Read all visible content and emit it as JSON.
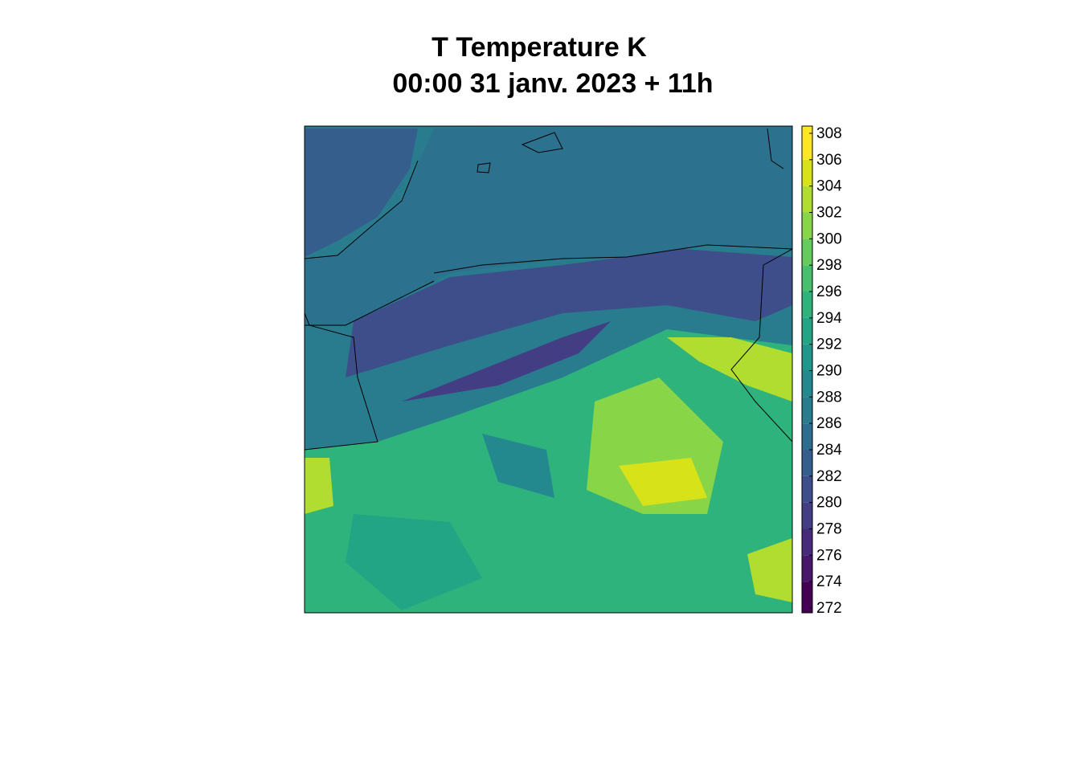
{
  "title": "T Temperature K",
  "subtitle": "00:00 31 janv. 2023 + 11h",
  "colorbar": {
    "ticks": [
      272,
      274,
      276,
      278,
      280,
      282,
      284,
      286,
      288,
      290,
      292,
      294,
      296,
      298,
      300,
      302,
      304,
      306,
      308
    ],
    "colors": [
      "#440154",
      "#481769",
      "#472a7a",
      "#433d84",
      "#3d4e8a",
      "#355e8d",
      "#2e6d8e",
      "#297b8e",
      "#23898e",
      "#1f978b",
      "#21a585",
      "#2eb37c",
      "#46c06f",
      "#65cb5e",
      "#89d548",
      "#b0dd2f",
      "#d8e219",
      "#fde725"
    ]
  }
}
